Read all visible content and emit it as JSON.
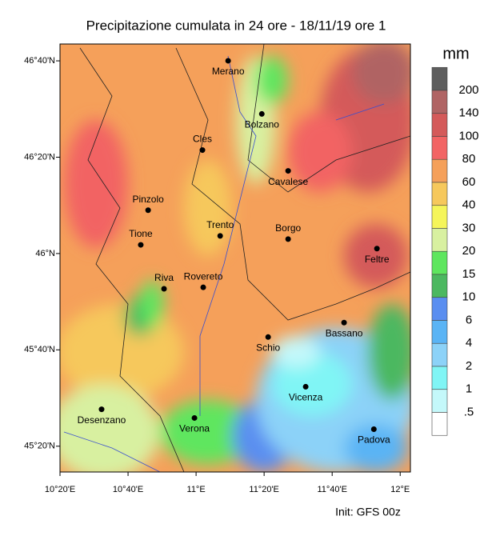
{
  "title": "Precipitazione cumulata in 24 ore - 18/11/19 ore 1",
  "map": {
    "xlim": [
      10.3333,
      12.05
    ],
    "ylim": [
      45.244,
      46.725
    ],
    "xticks": [
      {
        "value": 10.3333,
        "label": "10°20'E"
      },
      {
        "value": 10.6667,
        "label": "10°40'E"
      },
      {
        "value": 11,
        "label": "11°E"
      },
      {
        "value": 11.3333,
        "label": "11°20'E"
      },
      {
        "value": 11.6667,
        "label": "11°40'E"
      },
      {
        "value": 12,
        "label": "12°E"
      }
    ],
    "yticks": [
      {
        "value": 45.3333,
        "label": "45°20'N"
      },
      {
        "value": 45.6667,
        "label": "45°40'N"
      },
      {
        "value": 46,
        "label": "46°N"
      },
      {
        "value": 46.3333,
        "label": "46°20'N"
      },
      {
        "value": 46.6667,
        "label": "46°40'N"
      }
    ],
    "cities": [
      {
        "name": "Merano",
        "lon": 11.157,
        "lat": 46.667
      },
      {
        "name": "Bolzano",
        "lon": 11.322,
        "lat": 46.483
      },
      {
        "name": "Cles",
        "lon": 11.031,
        "lat": 46.358
      },
      {
        "name": "Cavalese",
        "lon": 11.451,
        "lat": 46.286
      },
      {
        "name": "Pinzolo",
        "lon": 10.765,
        "lat": 46.15
      },
      {
        "name": "Trento",
        "lon": 11.118,
        "lat": 46.061
      },
      {
        "name": "Borgo",
        "lon": 11.451,
        "lat": 46.05
      },
      {
        "name": "Tione",
        "lon": 10.729,
        "lat": 46.03
      },
      {
        "name": "Feltre",
        "lon": 11.886,
        "lat": 46.017
      },
      {
        "name": "Riva",
        "lon": 10.843,
        "lat": 45.878
      },
      {
        "name": "Rovereto",
        "lon": 11.035,
        "lat": 45.883
      },
      {
        "name": "Bassano",
        "lon": 11.725,
        "lat": 45.761
      },
      {
        "name": "Schio",
        "lon": 11.353,
        "lat": 45.711
      },
      {
        "name": "Vicenza",
        "lon": 11.537,
        "lat": 45.539
      },
      {
        "name": "Desenzano",
        "lon": 10.537,
        "lat": 45.461
      },
      {
        "name": "Verona",
        "lon": 10.992,
        "lat": 45.431
      },
      {
        "name": "Padova",
        "lon": 11.871,
        "lat": 45.392
      }
    ]
  },
  "colorbar": {
    "unit": "mm",
    "levels": [
      200,
      140,
      100,
      80,
      60,
      40,
      30,
      20,
      15,
      10,
      6,
      4,
      2,
      1,
      {
        "value": 0.5,
        "label": ".5"
      }
    ],
    "colors": [
      "#5e5e5e",
      "#b06464",
      "#d45a5a",
      "#f26464",
      "#f5a05a",
      "#f6c85c",
      "#f5f55a",
      "#d8f0a0",
      "#5ee65e",
      "#4cb860",
      "#5a8ef0",
      "#5ab4f5",
      "#8cd2f8",
      "#80f5f5",
      "#c4f8fa",
      "#ffffff"
    ]
  },
  "footer": "Init: GFS 00z"
}
